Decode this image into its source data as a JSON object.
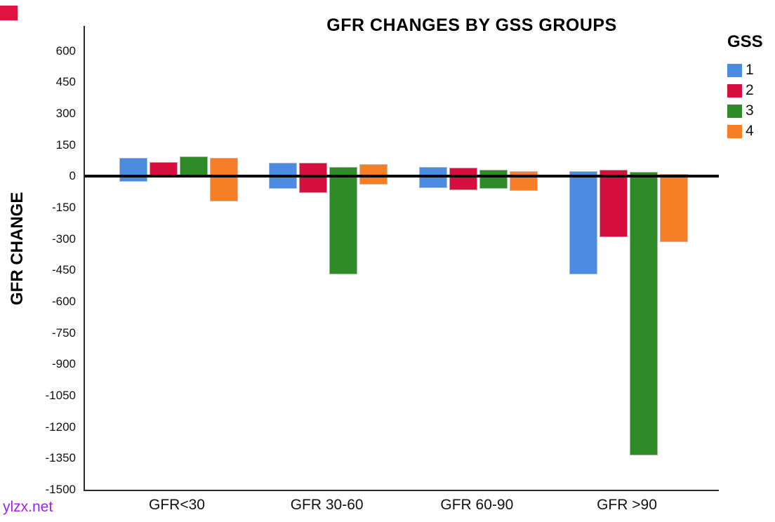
{
  "watermark": {
    "text": "ylzx.net",
    "color": "#A020F0"
  },
  "corner_flag_color": "#E0123F",
  "chart_data": {
    "type": "bar",
    "subtype": "floating-range-bars",
    "title": "GFR CHANGES BY GSS GROUPS",
    "xlabel": "",
    "ylabel": "GFR CHANGE",
    "categories": [
      "GFR<30",
      "GFR 30-60",
      "GFR 60-90",
      "GFR >90"
    ],
    "yticks": [
      600,
      450,
      300,
      150,
      0,
      -150,
      -300,
      -450,
      -600,
      -750,
      -900,
      -1050,
      -1200,
      -1350,
      -1500
    ],
    "ylim": [
      -1500,
      720
    ],
    "grid": false,
    "zero_line": true,
    "legend_title": "GSS",
    "legend_position": "top-right",
    "series": [
      {
        "name": "1",
        "color": "#4C8BE2",
        "bars": [
          {
            "from": -25,
            "to": 90
          },
          {
            "from": -60,
            "to": 65
          },
          {
            "from": -55,
            "to": 45
          },
          {
            "from": -470,
            "to": 25
          }
        ]
      },
      {
        "name": "2",
        "color": "#D60F3F",
        "bars": [
          {
            "from": -5,
            "to": 70
          },
          {
            "from": -80,
            "to": 65
          },
          {
            "from": -65,
            "to": 40
          },
          {
            "from": -290,
            "to": 30
          }
        ]
      },
      {
        "name": "3",
        "color": "#2E8B27",
        "bars": [
          {
            "from": 0,
            "to": 95
          },
          {
            "from": -470,
            "to": 45
          },
          {
            "from": -60,
            "to": 30
          },
          {
            "from": -1335,
            "to": 20
          }
        ]
      },
      {
        "name": "4",
        "color": "#F57E27",
        "bars": [
          {
            "from": -120,
            "to": 90
          },
          {
            "from": -40,
            "to": 60
          },
          {
            "from": -70,
            "to": 25
          },
          {
            "from": -315,
            "to": 10
          }
        ]
      }
    ]
  }
}
